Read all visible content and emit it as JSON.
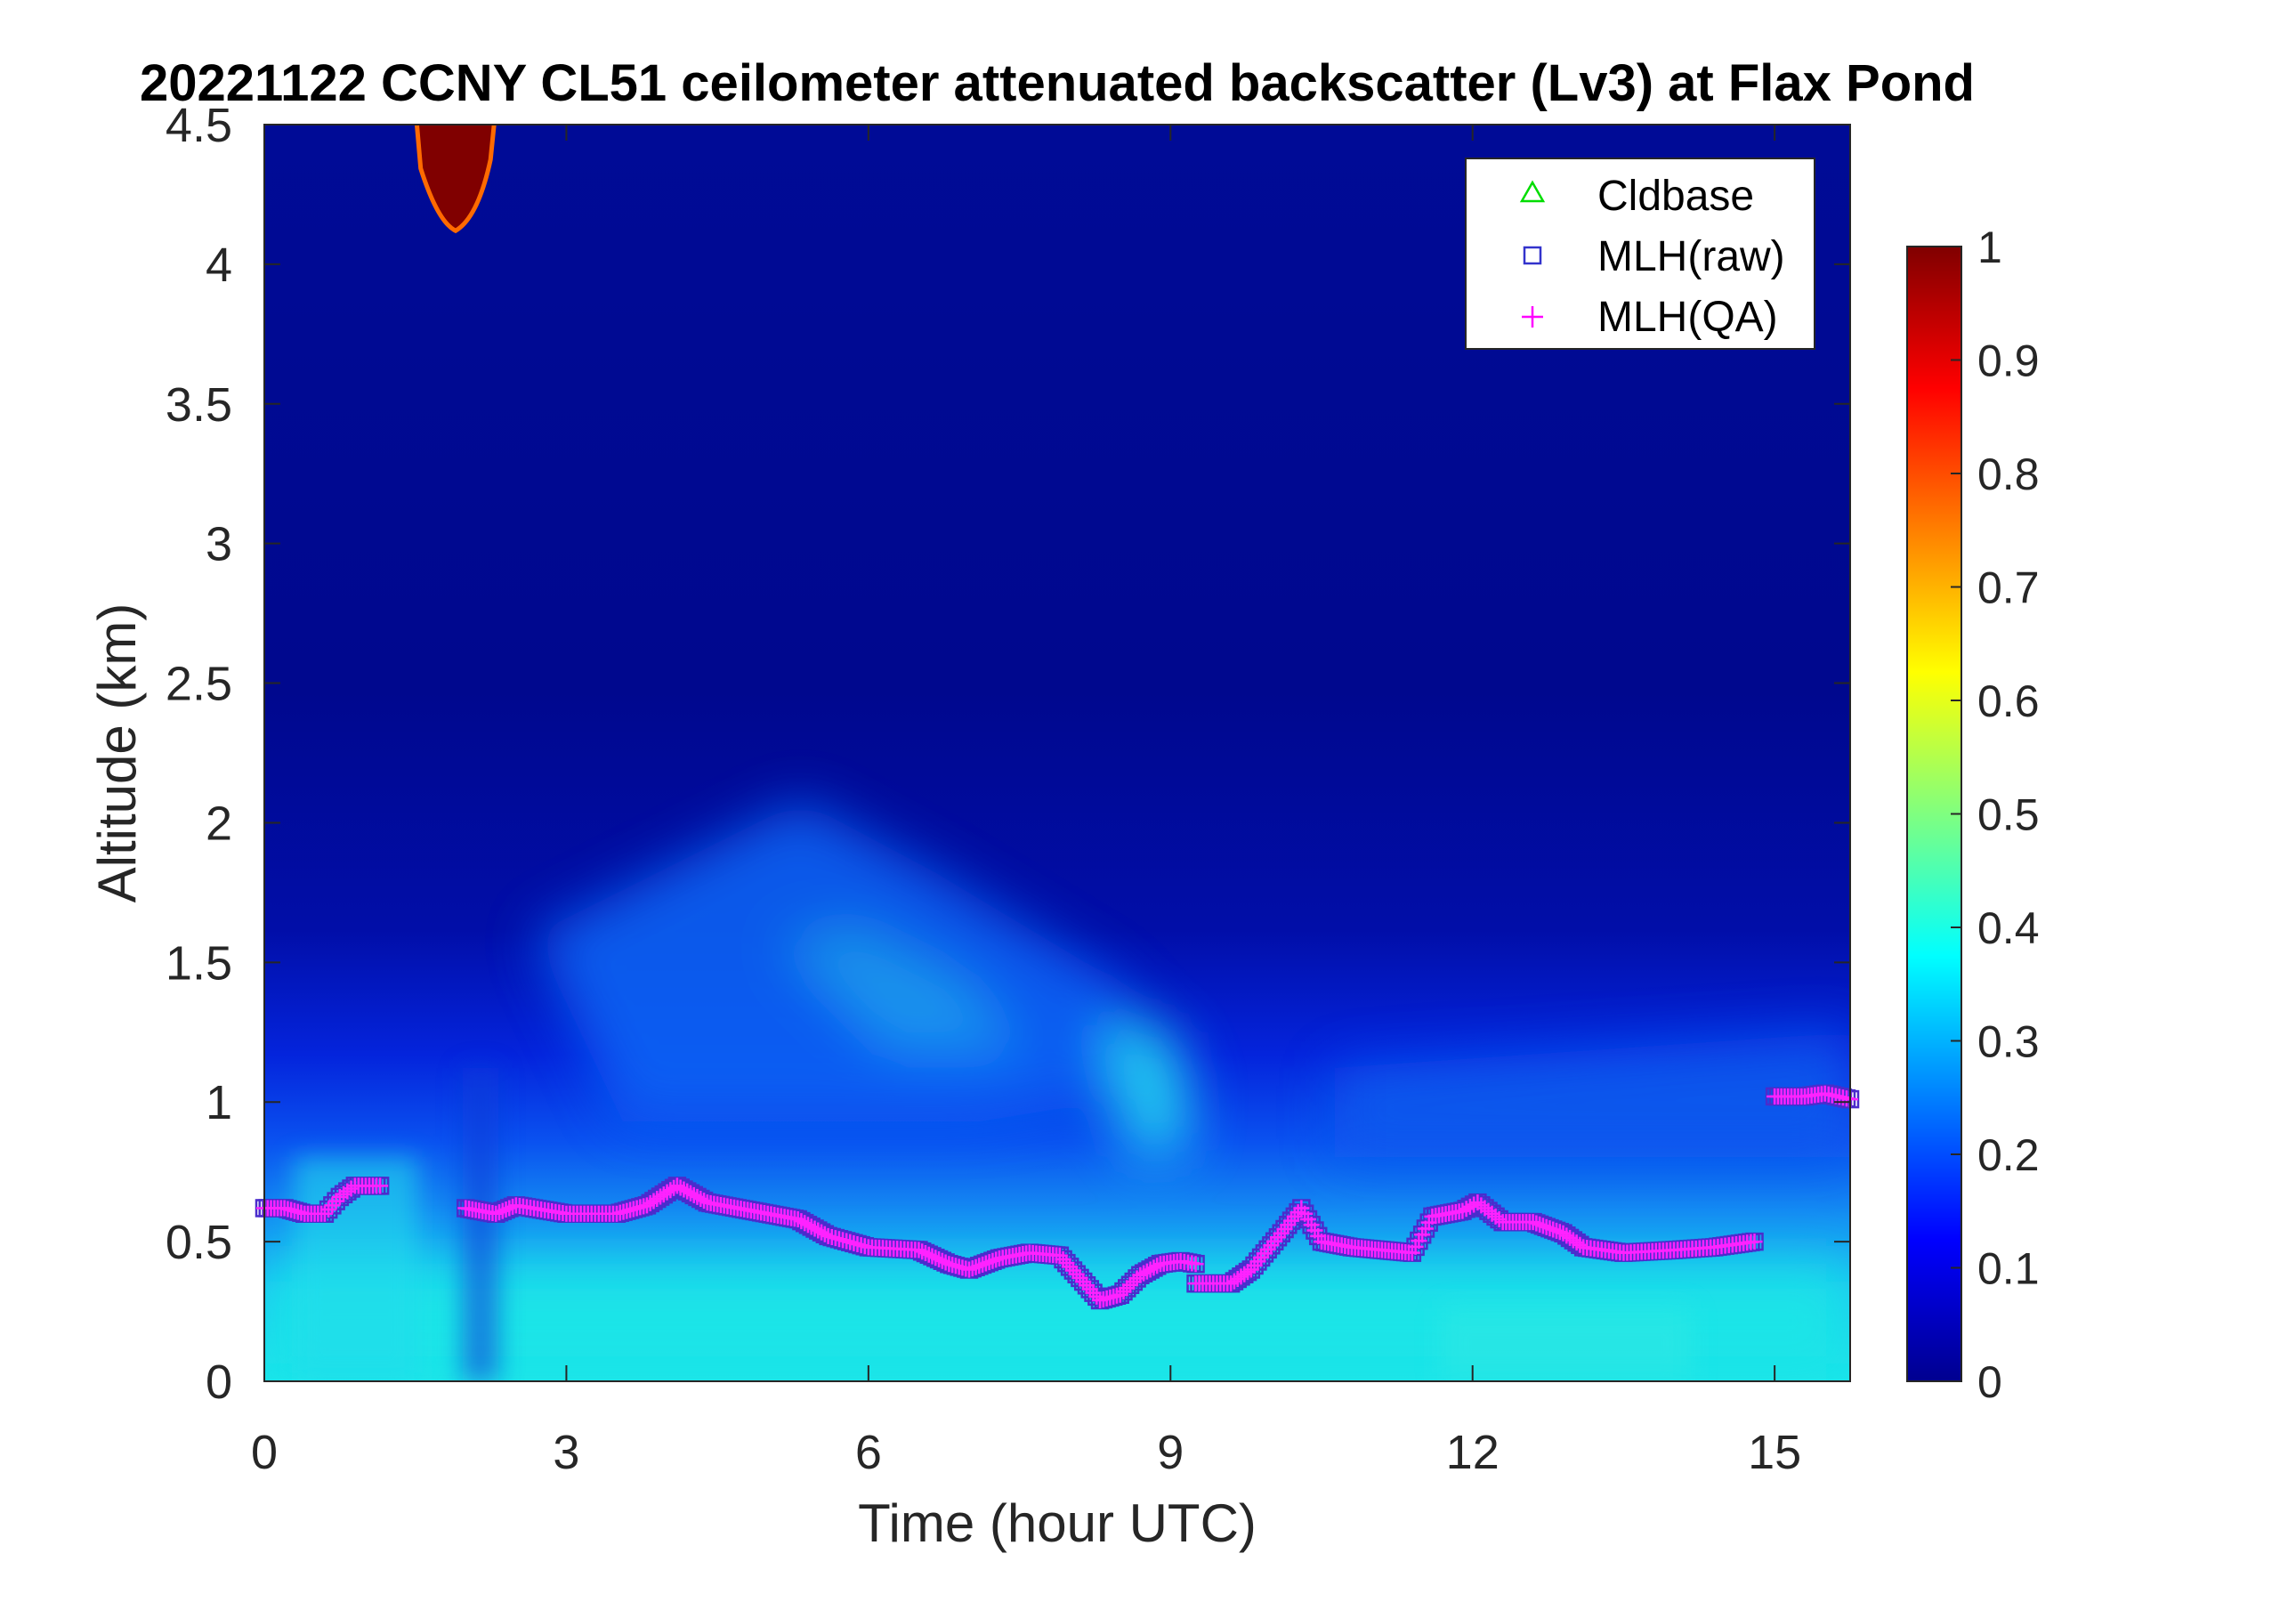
{
  "chart_data": {
    "type": "heatmap",
    "title": "20221122 CCNY CL51 ceilometer attenuated backscatter (Lv3) at Flax Pond",
    "xlabel": "Time (hour UTC)",
    "ylabel": "Altitude (km)",
    "xlim": [
      0,
      15.75
    ],
    "ylim": [
      0,
      4.5
    ],
    "xticks": [
      0,
      3,
      6,
      9,
      12,
      15
    ],
    "yticks": [
      0,
      0.5,
      1,
      1.5,
      2,
      2.5,
      3,
      3.5,
      4,
      4.5
    ],
    "colorbar": {
      "colormap": "jet",
      "clim": [
        0,
        1
      ],
      "ticks": [
        0,
        0.1,
        0.2,
        0.3,
        0.4,
        0.5,
        0.6,
        0.7,
        0.8,
        0.9,
        1
      ]
    },
    "legend": {
      "placement": "top-right",
      "entries": [
        {
          "label": "Cldbase",
          "marker": "triangle",
          "color": "#00dd00"
        },
        {
          "label": "MLH(raw)",
          "marker": "square",
          "color": "#3333cc"
        },
        {
          "label": "MLH(QA)",
          "marker": "plus",
          "color": "#ff00ff"
        }
      ]
    },
    "cloud": {
      "x_start": 1.5,
      "x_end": 2.3,
      "base_km": 4.12,
      "value": 1.0
    },
    "mlh_raw": [
      [
        [
          0.0,
          0.62
        ],
        [
          0.2,
          0.62
        ],
        [
          0.4,
          0.6
        ],
        [
          0.6,
          0.6
        ],
        [
          0.75,
          0.66
        ],
        [
          0.9,
          0.7
        ],
        [
          1.15,
          0.7
        ]
      ],
      [
        [
          2.0,
          0.62
        ],
        [
          2.3,
          0.6
        ],
        [
          2.5,
          0.63
        ],
        [
          3.0,
          0.6
        ],
        [
          3.5,
          0.6
        ],
        [
          3.8,
          0.63
        ],
        [
          4.1,
          0.7
        ],
        [
          4.4,
          0.64
        ],
        [
          4.7,
          0.62
        ],
        [
          5.0,
          0.6
        ],
        [
          5.3,
          0.58
        ],
        [
          5.6,
          0.52
        ],
        [
          6.0,
          0.48
        ],
        [
          6.5,
          0.47
        ],
        [
          6.8,
          0.42
        ],
        [
          7.0,
          0.4
        ],
        [
          7.3,
          0.44
        ],
        [
          7.6,
          0.46
        ],
        [
          7.9,
          0.45
        ],
        [
          8.1,
          0.37
        ],
        [
          8.3,
          0.29
        ],
        [
          8.5,
          0.31
        ],
        [
          8.7,
          0.38
        ],
        [
          8.9,
          0.42
        ],
        [
          9.1,
          0.43
        ],
        [
          9.25,
          0.42
        ]
      ],
      [
        [
          9.25,
          0.35
        ],
        [
          9.6,
          0.35
        ],
        [
          9.8,
          0.4
        ],
        [
          10.1,
          0.53
        ],
        [
          10.3,
          0.62
        ],
        [
          10.5,
          0.5
        ],
        [
          10.8,
          0.48
        ],
        [
          11.1,
          0.47
        ],
        [
          11.4,
          0.46
        ],
        [
          11.6,
          0.59
        ],
        [
          11.9,
          0.61
        ],
        [
          12.05,
          0.64
        ],
        [
          12.3,
          0.57
        ],
        [
          12.6,
          0.57
        ],
        [
          12.9,
          0.53
        ],
        [
          13.1,
          0.48
        ],
        [
          13.5,
          0.46
        ],
        [
          14.0,
          0.47
        ],
        [
          14.4,
          0.48
        ],
        [
          14.8,
          0.5
        ]
      ],
      [
        [
          15.0,
          1.02
        ],
        [
          15.3,
          1.02
        ],
        [
          15.5,
          1.03
        ],
        [
          15.75,
          1.01
        ]
      ]
    ],
    "mlh_qa": [
      [
        [
          0.0,
          0.62
        ],
        [
          0.2,
          0.62
        ],
        [
          0.4,
          0.6
        ],
        [
          0.6,
          0.6
        ],
        [
          0.75,
          0.66
        ],
        [
          0.9,
          0.7
        ],
        [
          1.15,
          0.7
        ]
      ],
      [
        [
          2.0,
          0.62
        ],
        [
          2.3,
          0.6
        ],
        [
          2.5,
          0.63
        ],
        [
          3.0,
          0.6
        ],
        [
          3.5,
          0.6
        ],
        [
          3.8,
          0.63
        ],
        [
          4.1,
          0.7
        ],
        [
          4.4,
          0.64
        ],
        [
          4.7,
          0.62
        ],
        [
          5.0,
          0.6
        ],
        [
          5.3,
          0.58
        ],
        [
          5.6,
          0.52
        ],
        [
          6.0,
          0.48
        ],
        [
          6.5,
          0.47
        ],
        [
          6.8,
          0.42
        ],
        [
          7.0,
          0.4
        ],
        [
          7.3,
          0.44
        ],
        [
          7.6,
          0.46
        ],
        [
          7.9,
          0.45
        ],
        [
          8.1,
          0.37
        ],
        [
          8.3,
          0.29
        ],
        [
          8.5,
          0.31
        ],
        [
          8.7,
          0.38
        ],
        [
          8.9,
          0.42
        ],
        [
          9.1,
          0.43
        ],
        [
          9.25,
          0.42
        ]
      ],
      [
        [
          9.25,
          0.35
        ],
        [
          9.6,
          0.35
        ],
        [
          9.8,
          0.4
        ],
        [
          10.1,
          0.53
        ],
        [
          10.3,
          0.62
        ],
        [
          10.5,
          0.5
        ],
        [
          10.8,
          0.48
        ],
        [
          11.1,
          0.47
        ],
        [
          11.4,
          0.46
        ],
        [
          11.6,
          0.59
        ],
        [
          11.9,
          0.61
        ],
        [
          12.05,
          0.64
        ],
        [
          12.3,
          0.57
        ],
        [
          12.6,
          0.57
        ],
        [
          12.9,
          0.53
        ],
        [
          13.1,
          0.48
        ],
        [
          13.5,
          0.46
        ],
        [
          14.0,
          0.47
        ],
        [
          14.4,
          0.48
        ],
        [
          14.8,
          0.5
        ]
      ],
      [
        [
          15.0,
          1.02
        ],
        [
          15.3,
          1.02
        ],
        [
          15.5,
          1.03
        ],
        [
          15.75,
          1.01
        ]
      ]
    ]
  }
}
